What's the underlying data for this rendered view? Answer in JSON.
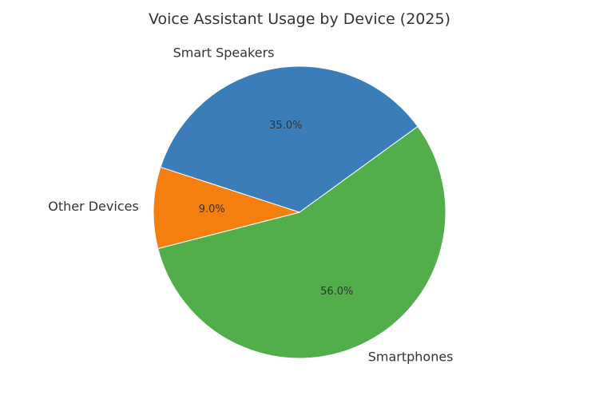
{
  "chart_data": {
    "type": "pie",
    "title": "Voice Assistant Usage by Device (2025)",
    "slices": [
      {
        "label": "Smart Speakers",
        "value": 35.0,
        "pct_label": "35.0%",
        "color": "#3a7db8"
      },
      {
        "label": "Smartphones",
        "value": 56.0,
        "pct_label": "56.0%",
        "color": "#52ae4b"
      },
      {
        "label": "Other Devices",
        "value": 9.0,
        "pct_label": "9.0%",
        "color": "#f57f0e"
      }
    ]
  }
}
